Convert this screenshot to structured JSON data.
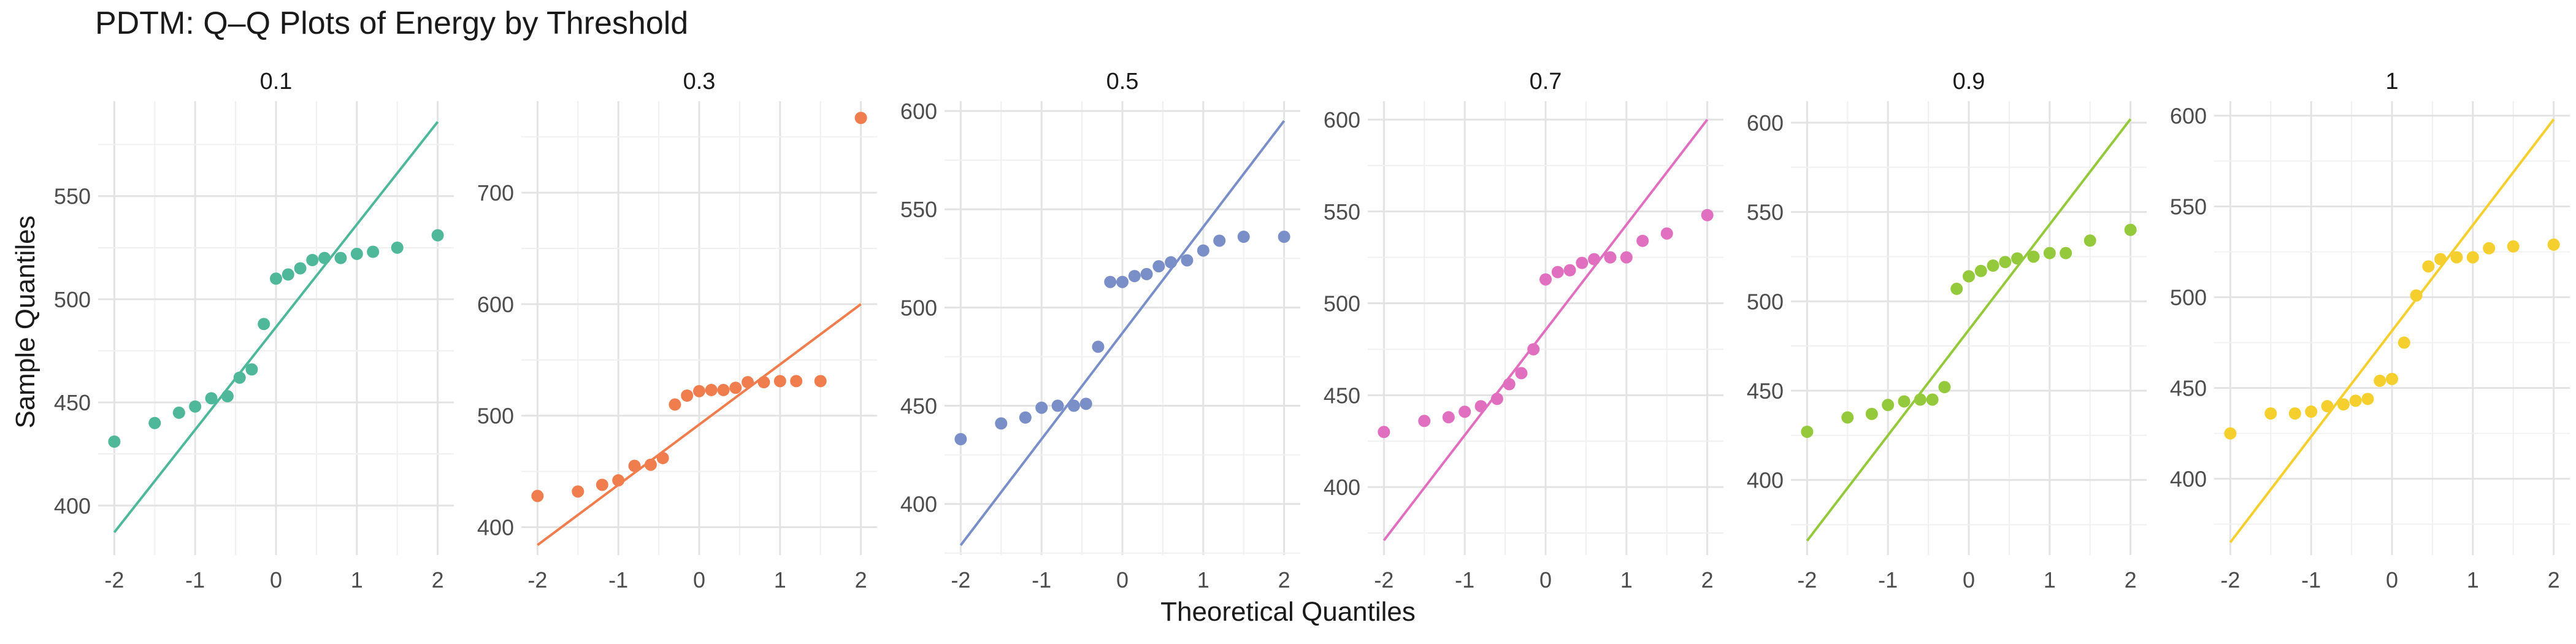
{
  "chart_data": {
    "type": "scatter",
    "title": "PDTM: Q–Q Plots of Energy by Threshold",
    "xlabel": "Theoretical Quantiles",
    "ylabel": "Sample Quantiles",
    "x_theoretical": [
      -2.0,
      -1.5,
      -1.2,
      -1.0,
      -0.8,
      -0.6,
      -0.45,
      -0.3,
      -0.15,
      0.0,
      0.15,
      0.3,
      0.45,
      0.6,
      0.8,
      1.0,
      1.2,
      1.5,
      2.0
    ],
    "xticks": [
      -2,
      -1,
      0,
      1,
      2
    ],
    "grid": true,
    "legend": "none",
    "panels": [
      {
        "strip": "0.1",
        "color": "#4fb89a",
        "ylim": [
          376,
          596
        ],
        "yticks": [
          400,
          450,
          500,
          550
        ],
        "values": [
          431,
          440,
          445,
          448,
          452,
          453,
          462,
          466,
          488,
          510,
          512,
          515,
          519,
          520,
          520,
          522,
          523,
          525,
          531
        ],
        "line": [
          387,
          586
        ]
      },
      {
        "strip": "0.3",
        "color": "#f07d4e",
        "ylim": [
          375,
          782
        ],
        "yticks": [
          400,
          500,
          600,
          700
        ],
        "values": [
          428,
          432,
          438,
          442,
          455,
          456,
          462,
          510,
          518,
          522,
          523,
          523,
          525,
          530,
          530,
          531,
          531,
          531,
          767
        ],
        "line": [
          384,
          600
        ]
      },
      {
        "strip": "0.5",
        "color": "#7a8fc8",
        "ylim": [
          374,
          605
        ],
        "yticks": [
          400,
          450,
          500,
          550,
          600
        ],
        "values": [
          433,
          441,
          444,
          449,
          450,
          450,
          451,
          480,
          513,
          513,
          516,
          517,
          521,
          523,
          524,
          529,
          534,
          536,
          536
        ],
        "line": [
          379,
          595
        ]
      },
      {
        "strip": "0.7",
        "color": "#e070bf",
        "ylim": [
          363,
          610
        ],
        "yticks": [
          400,
          450,
          500,
          550,
          600
        ],
        "values": [
          430,
          436,
          438,
          441,
          444,
          448,
          456,
          462,
          475,
          513,
          517,
          518,
          522,
          524,
          525,
          525,
          534,
          538,
          548
        ],
        "line": [
          371,
          600
        ]
      },
      {
        "strip": "0.9",
        "color": "#95c93c",
        "ylim": [
          358,
          612
        ],
        "yticks": [
          400,
          450,
          500,
          550,
          600
        ],
        "values": [
          427,
          435,
          437,
          442,
          444,
          445,
          445,
          452,
          507,
          514,
          517,
          520,
          522,
          524,
          525,
          527,
          527,
          534,
          540
        ],
        "line": [
          366,
          602
        ]
      },
      {
        "strip": "1",
        "color": "#f5cf2e",
        "ylim": [
          358,
          608
        ],
        "yticks": [
          400,
          450,
          500,
          550,
          600
        ],
        "values": [
          425,
          436,
          436,
          437,
          440,
          441,
          443,
          444,
          454,
          455,
          475,
          501,
          517,
          521,
          522,
          522,
          527,
          528,
          529
        ],
        "line": [
          365,
          598
        ]
      }
    ]
  }
}
